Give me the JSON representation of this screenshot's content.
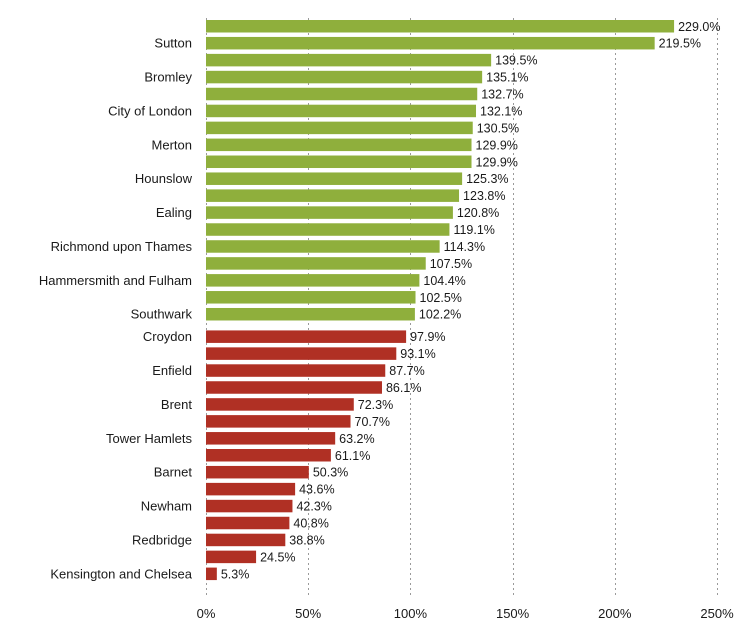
{
  "chart_data": {
    "type": "bar",
    "orientation": "horizontal",
    "title": "",
    "xlabel": "",
    "ylabel": "",
    "xlim": [
      0,
      250
    ],
    "ticks": [
      0,
      50,
      100,
      150,
      200,
      250
    ],
    "tick_labels": [
      "0%",
      "50%",
      "100%",
      "150%",
      "200%",
      "250%"
    ],
    "grid": true,
    "value_suffix": "%",
    "colors": {
      "above_100": "#8faf3c",
      "below_100": "#b03024"
    },
    "bars": [
      {
        "category": "",
        "value": 229.0,
        "label": "229.0%",
        "group": "above_100"
      },
      {
        "category": "Sutton",
        "value": 219.5,
        "label": "219.5%",
        "group": "above_100"
      },
      {
        "category": "",
        "value": 139.5,
        "label": "139.5%",
        "group": "above_100"
      },
      {
        "category": "Bromley",
        "value": 135.1,
        "label": "135.1%",
        "group": "above_100"
      },
      {
        "category": "",
        "value": 132.7,
        "label": "132.7%",
        "group": "above_100"
      },
      {
        "category": "City of London",
        "value": 132.1,
        "label": "132.1%",
        "group": "above_100"
      },
      {
        "category": "",
        "value": 130.5,
        "label": "130.5%",
        "group": "above_100"
      },
      {
        "category": "Merton",
        "value": 129.9,
        "label": "129.9%",
        "group": "above_100"
      },
      {
        "category": "",
        "value": 129.9,
        "label": "129.9%",
        "group": "above_100"
      },
      {
        "category": "Hounslow",
        "value": 125.3,
        "label": "125.3%",
        "group": "above_100"
      },
      {
        "category": "",
        "value": 123.8,
        "label": "123.8%",
        "group": "above_100"
      },
      {
        "category": "Ealing",
        "value": 120.8,
        "label": "120.8%",
        "group": "above_100"
      },
      {
        "category": "",
        "value": 119.1,
        "label": "119.1%",
        "group": "above_100"
      },
      {
        "category": "Richmond upon Thames",
        "value": 114.3,
        "label": "114.3%",
        "group": "above_100"
      },
      {
        "category": "",
        "value": 107.5,
        "label": "107.5%",
        "group": "above_100"
      },
      {
        "category": "Hammersmith and Fulham",
        "value": 104.4,
        "label": "104.4%",
        "group": "above_100"
      },
      {
        "category": "",
        "value": 102.5,
        "label": "102.5%",
        "group": "above_100"
      },
      {
        "category": "Southwark",
        "value": 102.2,
        "label": "102.2%",
        "group": "above_100"
      },
      {
        "category": "Croydon",
        "value": 97.9,
        "label": "97.9%",
        "group": "below_100"
      },
      {
        "category": "",
        "value": 93.1,
        "label": "93.1%",
        "group": "below_100"
      },
      {
        "category": "Enfield",
        "value": 87.7,
        "label": "87.7%",
        "group": "below_100"
      },
      {
        "category": "",
        "value": 86.1,
        "label": "86.1%",
        "group": "below_100"
      },
      {
        "category": "Brent",
        "value": 72.3,
        "label": "72.3%",
        "group": "below_100"
      },
      {
        "category": "",
        "value": 70.7,
        "label": "70.7%",
        "group": "below_100"
      },
      {
        "category": "Tower Hamlets",
        "value": 63.2,
        "label": "63.2%",
        "group": "below_100"
      },
      {
        "category": "",
        "value": 61.1,
        "label": "61.1%",
        "group": "below_100"
      },
      {
        "category": "Barnet",
        "value": 50.3,
        "label": "50.3%",
        "group": "below_100"
      },
      {
        "category": "",
        "value": 43.6,
        "label": "43.6%",
        "group": "below_100"
      },
      {
        "category": "Newham",
        "value": 42.3,
        "label": "42.3%",
        "group": "below_100"
      },
      {
        "category": "",
        "value": 40.8,
        "label": "40.8%",
        "group": "below_100"
      },
      {
        "category": "Redbridge",
        "value": 38.8,
        "label": "38.8%",
        "group": "below_100"
      },
      {
        "category": "",
        "value": 24.5,
        "label": "24.5%",
        "group": "below_100"
      },
      {
        "category": "Kensington and Chelsea",
        "value": 5.3,
        "label": "5.3%",
        "group": "below_100"
      }
    ]
  }
}
